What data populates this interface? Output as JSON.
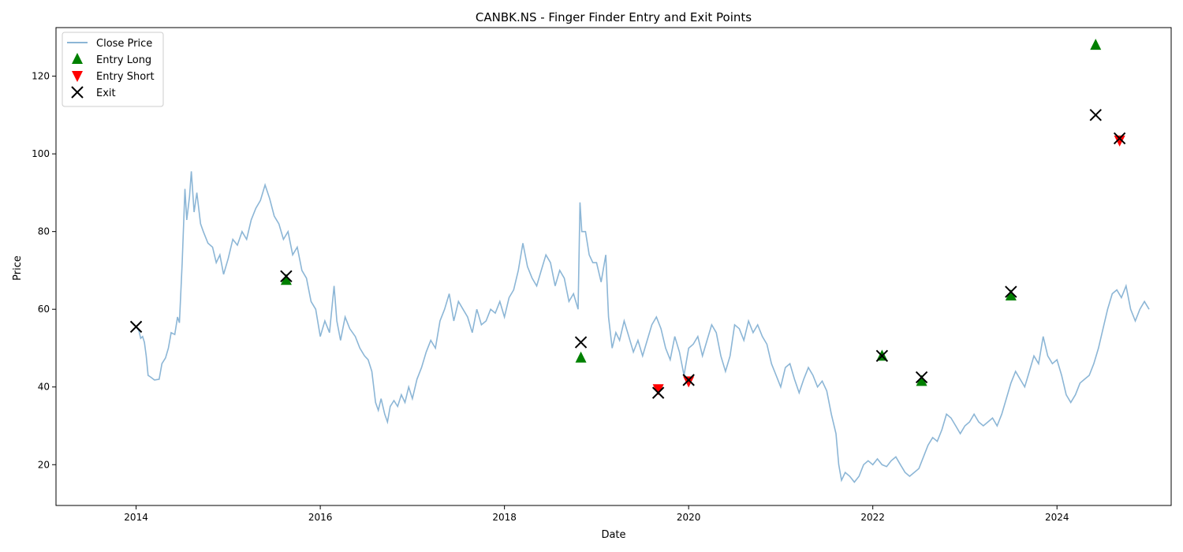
{
  "chart_data": {
    "type": "line",
    "title": "CANBK.NS - Finger Finder Entry and Exit Points",
    "xlabel": "Date",
    "ylabel": "Price",
    "xlim": [
      2013.13,
      2025.24
    ],
    "ylim": [
      9.5,
      132.5
    ],
    "x_ticks": [
      {
        "value": 2014,
        "label": "2014"
      },
      {
        "value": 2016,
        "label": "2016"
      },
      {
        "value": 2018,
        "label": "2018"
      },
      {
        "value": 2020,
        "label": "2020"
      },
      {
        "value": 2022,
        "label": "2022"
      },
      {
        "value": 2024,
        "label": "2024"
      }
    ],
    "y_ticks": [
      {
        "value": 20,
        "label": "20"
      },
      {
        "value": 40,
        "label": "40"
      },
      {
        "value": 60,
        "label": "60"
      },
      {
        "value": 80,
        "label": "80"
      },
      {
        "value": 100,
        "label": "100"
      },
      {
        "value": 120,
        "label": "120"
      }
    ],
    "grid": false,
    "legend_position": "upper-left",
    "series": [
      {
        "name": "Close Price",
        "type": "line",
        "color": "#8cb6d6",
        "points": [
          [
            2014.0,
            55.5
          ],
          [
            2014.03,
            54.5
          ],
          [
            2014.05,
            52.5
          ],
          [
            2014.07,
            53.0
          ],
          [
            2014.09,
            51.5
          ],
          [
            2014.11,
            48.0
          ],
          [
            2014.13,
            43.0
          ],
          [
            2014.16,
            42.5
          ],
          [
            2014.2,
            41.8
          ],
          [
            2014.25,
            42.0
          ],
          [
            2014.28,
            46.0
          ],
          [
            2014.32,
            47.5
          ],
          [
            2014.35,
            50.0
          ],
          [
            2014.38,
            54.0
          ],
          [
            2014.42,
            53.5
          ],
          [
            2014.45,
            58.0
          ],
          [
            2014.47,
            56.5
          ],
          [
            2014.5,
            72.0
          ],
          [
            2014.53,
            91.0
          ],
          [
            2014.55,
            83.0
          ],
          [
            2014.58,
            89.0
          ],
          [
            2014.6,
            95.5
          ],
          [
            2014.63,
            85.0
          ],
          [
            2014.66,
            90.0
          ],
          [
            2014.7,
            82.0
          ],
          [
            2014.73,
            80.0
          ],
          [
            2014.78,
            77.0
          ],
          [
            2014.83,
            76.0
          ],
          [
            2014.87,
            72.0
          ],
          [
            2014.91,
            74.0
          ],
          [
            2014.95,
            69.0
          ],
          [
            2015.0,
            73.0
          ],
          [
            2015.05,
            78.0
          ],
          [
            2015.1,
            76.5
          ],
          [
            2015.15,
            80.0
          ],
          [
            2015.2,
            78.0
          ],
          [
            2015.25,
            83.0
          ],
          [
            2015.3,
            86.0
          ],
          [
            2015.35,
            88.0
          ],
          [
            2015.4,
            92.0
          ],
          [
            2015.45,
            88.5
          ],
          [
            2015.5,
            84.0
          ],
          [
            2015.55,
            82.0
          ],
          [
            2015.6,
            78.0
          ],
          [
            2015.65,
            80.0
          ],
          [
            2015.7,
            74.0
          ],
          [
            2015.75,
            76.0
          ],
          [
            2015.8,
            70.0
          ],
          [
            2015.85,
            68.0
          ],
          [
            2015.9,
            62.0
          ],
          [
            2015.95,
            60.0
          ],
          [
            2016.0,
            53.0
          ],
          [
            2016.05,
            57.0
          ],
          [
            2016.1,
            54.0
          ],
          [
            2016.15,
            66.0
          ],
          [
            2016.18,
            57.0
          ],
          [
            2016.22,
            52.0
          ],
          [
            2016.27,
            58.0
          ],
          [
            2016.32,
            55.0
          ],
          [
            2016.38,
            53.0
          ],
          [
            2016.43,
            50.0
          ],
          [
            2016.48,
            48.0
          ],
          [
            2016.52,
            47.0
          ],
          [
            2016.56,
            44.0
          ],
          [
            2016.6,
            36.0
          ],
          [
            2016.63,
            34.0
          ],
          [
            2016.66,
            37.0
          ],
          [
            2016.7,
            33.0
          ],
          [
            2016.73,
            31.0
          ],
          [
            2016.76,
            35.0
          ],
          [
            2016.8,
            36.5
          ],
          [
            2016.84,
            35.0
          ],
          [
            2016.88,
            38.0
          ],
          [
            2016.92,
            36.0
          ],
          [
            2016.96,
            40.0
          ],
          [
            2017.0,
            37.0
          ],
          [
            2017.05,
            42.0
          ],
          [
            2017.1,
            45.0
          ],
          [
            2017.15,
            49.0
          ],
          [
            2017.2,
            52.0
          ],
          [
            2017.25,
            50.0
          ],
          [
            2017.3,
            57.0
          ],
          [
            2017.35,
            60.0
          ],
          [
            2017.4,
            64.0
          ],
          [
            2017.45,
            57.0
          ],
          [
            2017.5,
            62.0
          ],
          [
            2017.55,
            60.0
          ],
          [
            2017.6,
            58.0
          ],
          [
            2017.65,
            54.0
          ],
          [
            2017.7,
            60.0
          ],
          [
            2017.75,
            56.0
          ],
          [
            2017.8,
            57.0
          ],
          [
            2017.85,
            60.0
          ],
          [
            2017.9,
            59.0
          ],
          [
            2017.95,
            62.0
          ],
          [
            2018.0,
            58.0
          ],
          [
            2018.05,
            63.0
          ],
          [
            2018.1,
            65.0
          ],
          [
            2018.15,
            70.0
          ],
          [
            2018.2,
            77.0
          ],
          [
            2018.25,
            71.0
          ],
          [
            2018.3,
            68.0
          ],
          [
            2018.35,
            66.0
          ],
          [
            2018.4,
            70.0
          ],
          [
            2018.45,
            74.0
          ],
          [
            2018.5,
            72.0
          ],
          [
            2018.55,
            66.0
          ],
          [
            2018.6,
            70.0
          ],
          [
            2018.65,
            68.0
          ],
          [
            2018.7,
            62.0
          ],
          [
            2018.75,
            64.0
          ],
          [
            2018.8,
            60.0
          ],
          [
            2018.82,
            87.5
          ],
          [
            2018.84,
            80.0
          ],
          [
            2018.88,
            80.0
          ],
          [
            2018.92,
            74.0
          ],
          [
            2018.96,
            72.0
          ],
          [
            2019.0,
            72.0
          ],
          [
            2019.05,
            67.0
          ],
          [
            2019.1,
            74.0
          ],
          [
            2019.13,
            58.0
          ],
          [
            2019.17,
            50.0
          ],
          [
            2019.21,
            54.0
          ],
          [
            2019.25,
            52.0
          ],
          [
            2019.3,
            57.0
          ],
          [
            2019.35,
            53.0
          ],
          [
            2019.4,
            49.0
          ],
          [
            2019.45,
            52.0
          ],
          [
            2019.5,
            48.0
          ],
          [
            2019.55,
            52.0
          ],
          [
            2019.6,
            56.0
          ],
          [
            2019.65,
            58.0
          ],
          [
            2019.7,
            55.0
          ],
          [
            2019.75,
            50.0
          ],
          [
            2019.8,
            47.0
          ],
          [
            2019.85,
            53.0
          ],
          [
            2019.9,
            49.0
          ],
          [
            2019.95,
            43.0
          ],
          [
            2020.0,
            50.0
          ],
          [
            2020.05,
            51.0
          ],
          [
            2020.1,
            53.0
          ],
          [
            2020.15,
            48.0
          ],
          [
            2020.2,
            52.0
          ],
          [
            2020.25,
            56.0
          ],
          [
            2020.3,
            54.0
          ],
          [
            2020.35,
            48.0
          ],
          [
            2020.4,
            44.0
          ],
          [
            2020.45,
            48.0
          ],
          [
            2020.5,
            56.0
          ],
          [
            2020.55,
            55.0
          ],
          [
            2020.6,
            52.0
          ],
          [
            2020.65,
            57.0
          ],
          [
            2020.7,
            54.0
          ],
          [
            2020.75,
            56.0
          ],
          [
            2020.8,
            53.0
          ],
          [
            2020.85,
            51.0
          ],
          [
            2020.9,
            46.0
          ],
          [
            2020.95,
            43.0
          ],
          [
            2021.0,
            40.0
          ],
          [
            2021.05,
            45.0
          ],
          [
            2021.1,
            46.0
          ],
          [
            2021.15,
            42.0
          ],
          [
            2021.2,
            38.5
          ],
          [
            2021.25,
            42.0
          ],
          [
            2021.3,
            45.0
          ],
          [
            2021.35,
            43.0
          ],
          [
            2021.4,
            40.0
          ],
          [
            2021.45,
            41.5
          ],
          [
            2021.5,
            39.0
          ],
          [
            2021.55,
            33.0
          ],
          [
            2021.6,
            28.0
          ],
          [
            2021.63,
            20.0
          ],
          [
            2021.66,
            16.0
          ],
          [
            2021.7,
            18.0
          ],
          [
            2021.75,
            17.0
          ],
          [
            2021.8,
            15.5
          ],
          [
            2021.85,
            17.0
          ],
          [
            2021.9,
            20.0
          ],
          [
            2021.95,
            21.0
          ],
          [
            2022.0,
            20.0
          ],
          [
            2022.05,
            21.5
          ],
          [
            2022.1,
            20.0
          ],
          [
            2022.15,
            19.5
          ],
          [
            2022.2,
            21.0
          ],
          [
            2022.25,
            22.0
          ],
          [
            2022.3,
            20.0
          ],
          [
            2022.35,
            18.0
          ],
          [
            2022.4,
            17.0
          ],
          [
            2022.45,
            18.0
          ],
          [
            2022.5,
            19.0
          ],
          [
            2022.55,
            22.0
          ],
          [
            2022.6,
            25.0
          ],
          [
            2022.65,
            27.0
          ],
          [
            2022.7,
            26.0
          ],
          [
            2022.75,
            29.0
          ],
          [
            2022.8,
            33.0
          ],
          [
            2022.85,
            32.0
          ],
          [
            2022.9,
            30.0
          ],
          [
            2022.95,
            28.0
          ],
          [
            2023.0,
            30.0
          ],
          [
            2023.05,
            31.0
          ],
          [
            2023.1,
            33.0
          ],
          [
            2023.15,
            31.0
          ],
          [
            2023.2,
            30.0
          ],
          [
            2023.25,
            31.0
          ],
          [
            2023.3,
            32.0
          ],
          [
            2023.35,
            30.0
          ],
          [
            2023.4,
            33.0
          ],
          [
            2023.45,
            37.0
          ],
          [
            2023.5,
            41.0
          ],
          [
            2023.55,
            44.0
          ],
          [
            2023.6,
            42.0
          ],
          [
            2023.65,
            40.0
          ],
          [
            2023.7,
            44.0
          ],
          [
            2023.75,
            48.0
          ],
          [
            2023.8,
            46.0
          ],
          [
            2023.85,
            53.0
          ],
          [
            2023.9,
            48.0
          ],
          [
            2023.95,
            46.0
          ],
          [
            2024.0,
            47.0
          ],
          [
            2024.05,
            43.0
          ],
          [
            2024.1,
            38.0
          ],
          [
            2024.15,
            36.0
          ],
          [
            2024.2,
            38.0
          ],
          [
            2024.25,
            41.0
          ],
          [
            2024.3,
            42.0
          ],
          [
            2024.35,
            43.0
          ],
          [
            2024.4,
            46.0
          ],
          [
            2024.45,
            50.0
          ],
          [
            2024.5,
            55.0
          ],
          [
            2024.55,
            60.0
          ],
          [
            2024.6,
            64.0
          ],
          [
            2024.65,
            65.0
          ],
          [
            2024.7,
            63.0
          ],
          [
            2024.75,
            66.0
          ],
          [
            2024.8,
            60.0
          ],
          [
            2024.85,
            57.0
          ],
          [
            2024.9,
            60.0
          ],
          [
            2024.95,
            62.0
          ],
          [
            2025.0,
            60.0
          ]
        ]
      },
      {
        "name": "Entry Long",
        "type": "scatter",
        "marker": "triangle-up",
        "color": "#008000",
        "points": [
          [
            2015.63,
            67.5
          ],
          [
            2018.83,
            47.5
          ],
          [
            2022.1,
            48.0
          ],
          [
            2022.53,
            41.5
          ],
          [
            2023.5,
            63.5
          ],
          [
            2024.42,
            128.0
          ]
        ]
      },
      {
        "name": "Entry Short",
        "type": "scatter",
        "marker": "triangle-down",
        "color": "#ff0000",
        "points": [
          [
            2019.67,
            39.5
          ],
          [
            2020.0,
            41.5
          ],
          [
            2024.68,
            103.5
          ]
        ]
      },
      {
        "name": "Exit",
        "type": "scatter",
        "marker": "x",
        "color": "#000000",
        "points": [
          [
            2014.0,
            55.5
          ],
          [
            2015.63,
            68.5
          ],
          [
            2018.83,
            51.5
          ],
          [
            2019.67,
            38.5
          ],
          [
            2020.0,
            41.8
          ],
          [
            2022.1,
            48.0
          ],
          [
            2022.53,
            42.5
          ],
          [
            2023.5,
            64.5
          ],
          [
            2024.42,
            110.0
          ],
          [
            2024.68,
            104.0
          ]
        ]
      }
    ]
  }
}
